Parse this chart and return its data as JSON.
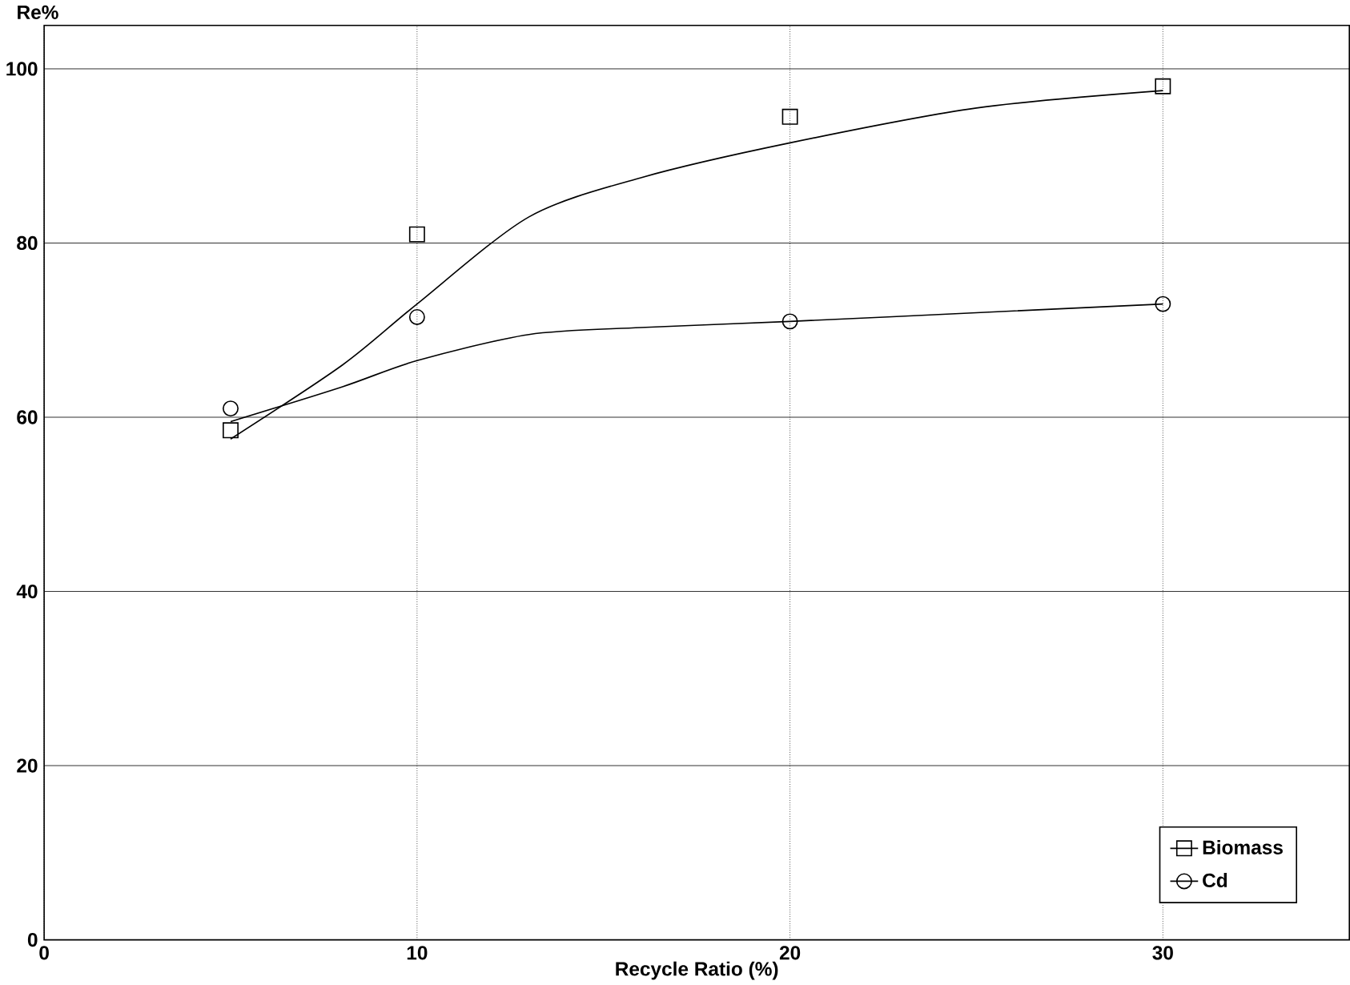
{
  "chart_data": {
    "type": "scatter",
    "xlabel": "Recycle Ratio (%)",
    "ylabel": "Re%",
    "xlim": [
      0,
      35
    ],
    "ylim": [
      0,
      105
    ],
    "xticks": [
      0,
      10,
      20,
      30
    ],
    "yticks": [
      0,
      20,
      40,
      60,
      80,
      100
    ],
    "grid": true,
    "legend": "bottom right",
    "series": [
      {
        "type": "line",
        "color": "#000000",
        "marker": "none",
        "x": [
          5,
          8,
          10,
          13,
          16,
          20,
          25,
          30
        ],
        "values": [
          57.5,
          66,
          73,
          83,
          87.5,
          91.5,
          95.5,
          97.5
        ]
      },
      {
        "type": "line",
        "color": "#000000",
        "marker": "none",
        "x": [
          5,
          8,
          10,
          13,
          16,
          20,
          25,
          30
        ],
        "values": [
          59.5,
          63.5,
          66.5,
          69.5,
          70.3,
          71,
          72,
          73
        ]
      },
      {
        "name": "Biomass",
        "color": "#000000",
        "marker": "square",
        "x": [
          5,
          10,
          20,
          30
        ],
        "values": [
          58.5,
          81,
          94.5,
          98
        ]
      },
      {
        "name": "Cd",
        "color": "#000000",
        "marker": "circle",
        "x": [
          5,
          10,
          20,
          30
        ],
        "values": [
          61,
          71.5,
          71,
          73
        ]
      }
    ]
  }
}
